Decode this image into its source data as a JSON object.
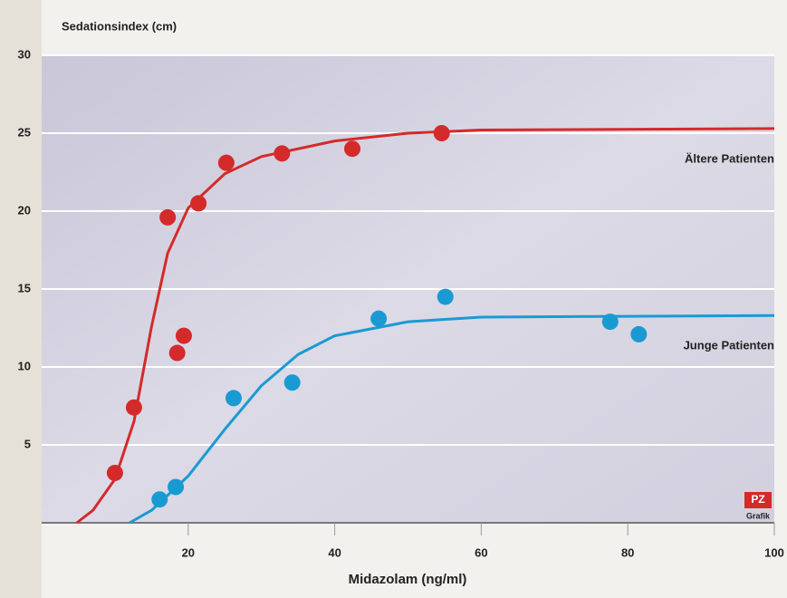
{
  "chart_data": {
    "type": "scatter",
    "title": "Sedationsindex (cm)",
    "x_label": "Midazolam (ng/ml)",
    "xlim": [
      0,
      100
    ],
    "xticks": [
      20,
      40,
      60,
      80,
      100
    ],
    "ylim": [
      0,
      30
    ],
    "yticks": [
      5,
      10,
      15,
      20,
      25,
      30
    ],
    "grid": true,
    "badge": "PZ",
    "badge_caption": "Grafik",
    "series": [
      {
        "name": "Ältere Patienten",
        "color": "#d42a2a",
        "x": [
          10.0,
          12.6,
          17.2,
          21.4,
          18.5,
          19.4,
          25.2,
          32.8,
          42.4,
          54.6
        ],
        "values": [
          3.2,
          7.4,
          19.6,
          20.5,
          10.9,
          12.0,
          23.1,
          23.7,
          24.0,
          25.0
        ],
        "fit": {
          "x": [
            4.8,
            7,
            10,
            12.6,
            15,
            17.2,
            20,
            25,
            30,
            40,
            50,
            60,
            100
          ],
          "values": [
            0,
            0.8,
            2.8,
            6.5,
            12.6,
            17.3,
            20.2,
            22.4,
            23.5,
            24.5,
            25.0,
            25.2,
            25.3
          ]
        }
      },
      {
        "name": "Junge Patienten",
        "color": "#1a9ad2",
        "x": [
          16.1,
          18.3,
          26.2,
          34.2,
          46.0,
          55.1,
          77.6,
          81.5
        ],
        "values": [
          1.5,
          2.3,
          8.0,
          9.0,
          13.1,
          14.5,
          12.9,
          12.1
        ],
        "fit": {
          "x": [
            12,
            15,
            20,
            25,
            30,
            35,
            40,
            50,
            60,
            100
          ],
          "values": [
            0,
            0.8,
            3.0,
            6.0,
            8.8,
            10.8,
            12.0,
            12.9,
            13.2,
            13.3
          ]
        }
      }
    ]
  }
}
